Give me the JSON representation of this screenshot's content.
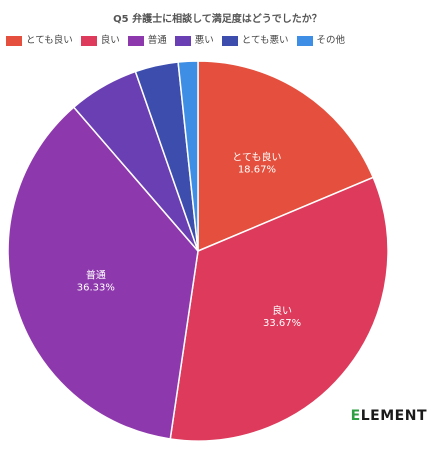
{
  "chart_data": {
    "type": "pie",
    "title": "Q5 弁護士に相談して満足度はどうでしたか？",
    "categories": [
      "とても良い",
      "良い",
      "普通",
      "悪い",
      "とても悪い",
      "その他"
    ],
    "values": [
      18.67,
      33.67,
      36.33,
      6.0,
      3.67,
      1.67
    ],
    "value_labels": [
      "18.67%",
      "33.67%",
      "36.33%",
      "",
      "",
      ""
    ],
    "colors": [
      "#e4503d",
      "#dd3a5c",
      "#8e38ad",
      "#6a3fb3",
      "#3d4dae",
      "#3f8ee5"
    ],
    "legend_position": "top-left"
  },
  "brand": {
    "logo_first": "E",
    "logo_rest": "LEMENT"
  }
}
